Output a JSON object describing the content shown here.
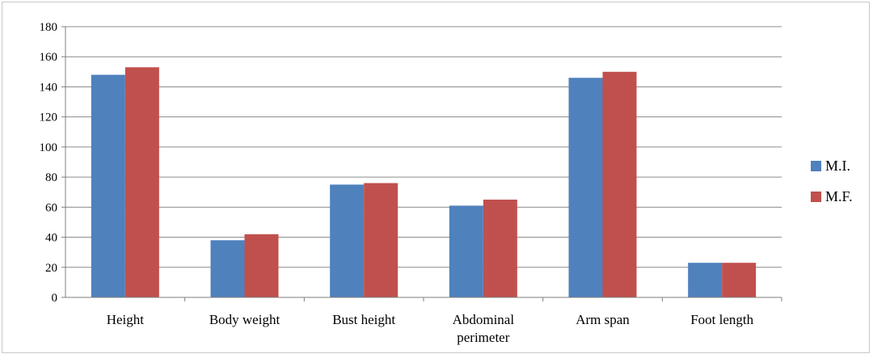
{
  "chart_data": {
    "type": "bar",
    "title": "",
    "xlabel": "",
    "ylabel": "",
    "ylim": [
      0,
      180
    ],
    "yticks": [
      0,
      20,
      40,
      60,
      80,
      100,
      120,
      140,
      160,
      180
    ],
    "grid": true,
    "legend_position": "right",
    "categories": [
      [
        "Height"
      ],
      [
        "Body weight"
      ],
      [
        "Bust height"
      ],
      [
        "Abdominal",
        "perimeter"
      ],
      [
        "Arm  span"
      ],
      [
        "Foot length"
      ]
    ],
    "series": [
      {
        "name": "M.I.",
        "color": "#4f81bd",
        "values": [
          148,
          38,
          75,
          61,
          146,
          23
        ]
      },
      {
        "name": "M.F.",
        "color": "#c0504d",
        "values": [
          153,
          42,
          76,
          65,
          150,
          23
        ]
      }
    ]
  }
}
